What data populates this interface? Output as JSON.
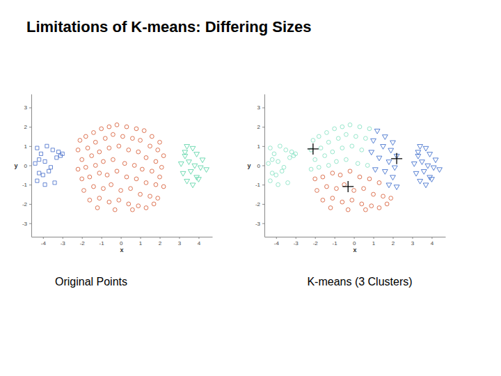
{
  "title": "Limitations of K-means: Differing Sizes",
  "chart_data": [
    {
      "type": "scatter",
      "title": "Original Points",
      "x_label": "x",
      "y_label": "y",
      "xlim": [
        -4.6,
        4.7
      ],
      "ylim": [
        -3.7,
        3.7
      ],
      "xticks": [
        -4,
        -3,
        -2,
        -1,
        0,
        1,
        2,
        3,
        4
      ],
      "yticks": [
        -3,
        -2,
        -1,
        0,
        1,
        2,
        3
      ],
      "series": [
        {
          "color": "#4169c8",
          "marker": "square",
          "x": [
            -4.3,
            -4.1,
            -3.8,
            -3.5,
            -3.2,
            -3.0,
            -4.4,
            -4.2,
            -3.9,
            -3.6,
            -3.3,
            -3.1,
            -4.0,
            -3.7,
            -4.3,
            -3.4,
            -3.9,
            -4.2
          ],
          "y": [
            0.9,
            0.6,
            1.0,
            0.8,
            0.7,
            0.6,
            0.1,
            0.3,
            0.2,
            -0.1,
            0.4,
            0.5,
            -0.5,
            -0.3,
            -0.8,
            -0.9,
            -1.0,
            -0.4
          ]
        },
        {
          "color": "#d4532b",
          "marker": "circle",
          "x": [
            -2.1,
            -1.8,
            -1.4,
            -1.0,
            -0.6,
            -0.2,
            0.3,
            0.8,
            1.2,
            1.6,
            2.0,
            -2.2,
            -1.7,
            -1.3,
            -0.8,
            -0.4,
            0.1,
            0.6,
            1.0,
            1.5,
            1.9,
            2.2,
            -2.0,
            -1.5,
            -1.1,
            -0.6,
            -0.1,
            0.4,
            0.9,
            1.3,
            1.8,
            2.1,
            -2.2,
            -1.8,
            -1.3,
            -0.9,
            -0.4,
            0.2,
            0.7,
            1.1,
            1.6,
            2.0,
            -2.0,
            -1.6,
            -1.1,
            -0.7,
            -0.2,
            0.3,
            0.8,
            1.3,
            1.8,
            2.2,
            -1.9,
            -1.4,
            -0.9,
            -0.5,
            0.0,
            0.5,
            1.0,
            1.5,
            1.9,
            -1.6,
            -1.1,
            -0.6,
            -0.1,
            0.4,
            0.9,
            1.3,
            1.7,
            -1.2,
            -0.3,
            0.6
          ],
          "y": [
            1.3,
            1.5,
            1.7,
            1.9,
            2.0,
            2.1,
            2.0,
            1.9,
            1.8,
            1.5,
            1.2,
            0.8,
            0.9,
            1.2,
            1.4,
            1.6,
            1.5,
            1.4,
            1.3,
            1.0,
            0.8,
            0.5,
            0.3,
            0.5,
            0.7,
            0.9,
            1.0,
            0.8,
            0.7,
            0.4,
            0.2,
            -0.1,
            -0.2,
            -0.1,
            0.0,
            0.2,
            0.3,
            0.1,
            0.0,
            -0.2,
            -0.3,
            -0.6,
            -0.7,
            -0.6,
            -0.4,
            -0.5,
            -0.3,
            -0.6,
            -0.7,
            -0.9,
            -1.0,
            -1.1,
            -1.3,
            -1.1,
            -1.2,
            -1.0,
            -1.3,
            -1.2,
            -1.5,
            -1.6,
            -1.7,
            -1.8,
            -1.7,
            -1.9,
            -1.8,
            -2.0,
            -2.1,
            -2.2,
            -2.0,
            -2.2,
            -2.3,
            -2.3
          ]
        },
        {
          "color": "#4ed1a0",
          "marker": "triangle-down",
          "x": [
            3.4,
            3.7,
            3.3,
            3.9,
            4.2,
            3.1,
            3.5,
            3.8,
            4.1,
            4.4,
            3.2,
            3.6,
            3.9,
            3.4,
            3.7,
            4.0,
            3.3
          ],
          "y": [
            1.0,
            0.9,
            0.5,
            0.6,
            0.3,
            0.1,
            0.2,
            0.0,
            -0.1,
            -0.2,
            -0.4,
            -0.3,
            -0.6,
            -0.8,
            -1.0,
            -0.7,
            0.7
          ]
        }
      ]
    },
    {
      "type": "scatter",
      "title": "K-means (3 Clusters)",
      "x_label": "x",
      "y_label": "y",
      "xlim": [
        -4.6,
        4.7
      ],
      "ylim": [
        -3.7,
        3.7
      ],
      "xticks": [
        -4,
        -3,
        -2,
        -1,
        0,
        1,
        2,
        3,
        4
      ],
      "yticks": [
        -3,
        -2,
        -1,
        0,
        1,
        2,
        3
      ],
      "series": [
        {
          "color": "#7fe0bf",
          "marker": "circle",
          "x": [
            -4.3,
            -4.1,
            -3.8,
            -3.5,
            -3.2,
            -3.0,
            -4.4,
            -4.2,
            -3.9,
            -3.6,
            -3.3,
            -3.1,
            -4.0,
            -3.7,
            -4.3,
            -3.4,
            -3.9,
            -4.2,
            -2.1,
            -1.8,
            -1.4,
            -1.0,
            -0.6,
            -0.2,
            0.3,
            0.8,
            -2.2,
            -1.7,
            -1.3,
            -0.8,
            -0.4,
            0.1,
            0.6,
            -2.0,
            -1.5,
            -1.1,
            -0.6,
            -0.1,
            0.4,
            -2.2,
            -1.8,
            -1.3,
            -0.9,
            -0.4,
            0.2,
            0.7
          ],
          "y": [
            0.9,
            0.6,
            1.0,
            0.8,
            0.7,
            0.6,
            0.1,
            0.3,
            0.2,
            -0.1,
            0.4,
            0.5,
            -0.5,
            -0.3,
            -0.8,
            -0.9,
            -1.0,
            -0.4,
            1.3,
            1.5,
            1.7,
            1.9,
            2.0,
            2.1,
            2.0,
            1.9,
            0.8,
            0.9,
            1.2,
            1.4,
            1.6,
            1.5,
            1.4,
            0.3,
            0.5,
            0.7,
            0.9,
            1.0,
            0.8,
            -0.2,
            -0.1,
            0.0,
            0.2,
            0.3,
            0.1,
            0.0
          ]
        },
        {
          "color": "#2f62c8",
          "marker": "triangle-down",
          "x": [
            3.4,
            3.7,
            3.3,
            3.9,
            4.2,
            3.1,
            3.5,
            3.8,
            4.1,
            4.4,
            3.2,
            3.6,
            3.9,
            3.4,
            3.7,
            4.0,
            3.3,
            1.2,
            1.6,
            2.0,
            1.0,
            1.5,
            1.9,
            2.2,
            0.9,
            1.3,
            1.8,
            2.1,
            1.1,
            1.6,
            2.0,
            1.8,
            2.2
          ],
          "y": [
            1.0,
            0.9,
            0.5,
            0.6,
            0.3,
            0.1,
            0.2,
            0.0,
            -0.1,
            -0.2,
            -0.4,
            -0.3,
            -0.6,
            -0.8,
            -1.0,
            -0.7,
            0.7,
            1.8,
            1.5,
            1.2,
            1.3,
            1.0,
            0.8,
            0.5,
            0.7,
            0.4,
            0.2,
            -0.1,
            -0.2,
            -0.3,
            -0.6,
            -1.0,
            -1.1
          ]
        },
        {
          "color": "#d4532b",
          "marker": "circle",
          "x": [
            -2.0,
            -1.6,
            -1.1,
            -0.7,
            -0.2,
            0.3,
            0.8,
            1.3,
            -1.9,
            -1.4,
            -0.9,
            -0.5,
            0.0,
            0.5,
            1.0,
            1.5,
            1.9,
            -1.6,
            -1.1,
            -0.6,
            -0.1,
            0.4,
            0.9,
            1.3,
            1.7,
            -1.2,
            -0.3,
            0.6
          ],
          "y": [
            -0.7,
            -0.6,
            -0.4,
            -0.5,
            -0.3,
            -0.6,
            -0.7,
            -0.9,
            -1.3,
            -1.1,
            -1.2,
            -1.0,
            -1.3,
            -1.2,
            -1.5,
            -1.6,
            -1.7,
            -1.8,
            -1.7,
            -1.9,
            -1.8,
            -2.0,
            -2.1,
            -2.2,
            -2.0,
            -2.2,
            -2.3,
            -2.3
          ]
        },
        {
          "color": "#000000",
          "marker": "plus",
          "x": [
            -2.1,
            2.2,
            -0.3
          ],
          "y": [
            0.85,
            0.35,
            -1.1
          ]
        }
      ]
    }
  ]
}
